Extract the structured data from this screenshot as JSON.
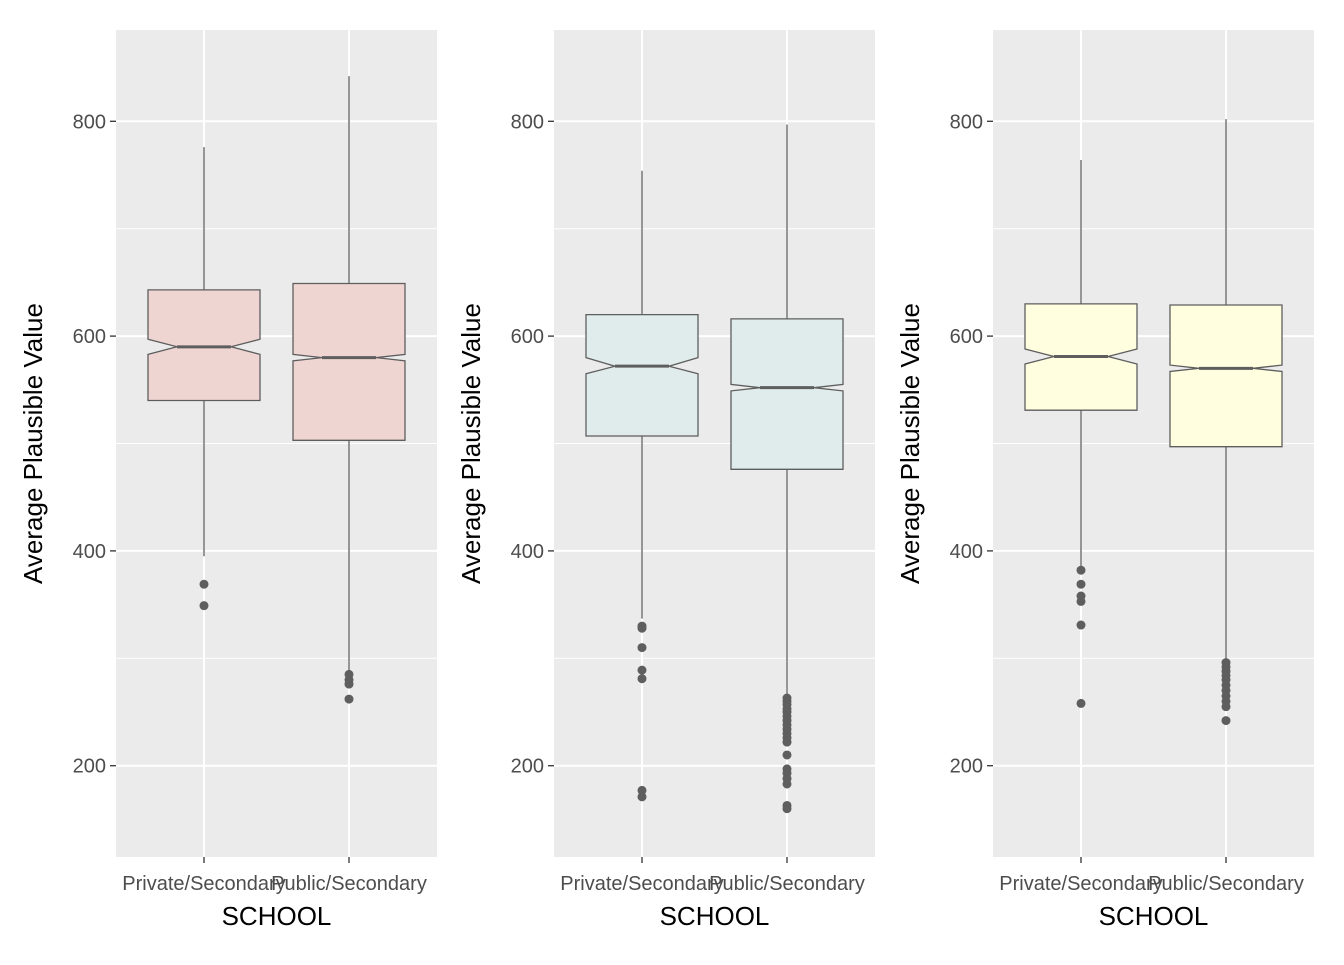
{
  "chart_data": [
    {
      "type": "boxplot",
      "notched": true,
      "fill": "#EFD5D2",
      "xlabel": "SCHOOL",
      "ylabel": "Average Plausible Value",
      "ylim": [
        115,
        885
      ],
      "yticks": [
        200,
        400,
        600,
        800
      ],
      "categories": [
        "Private/Secondary",
        "Public/Secondary"
      ],
      "boxes": [
        {
          "category": "Private/Secondary",
          "whisker_low": 395,
          "q1": 540,
          "median": 590,
          "q3": 643,
          "whisker_high": 776,
          "notch_low": 583,
          "notch_high": 597,
          "outliers": [
            369,
            349
          ]
        },
        {
          "category": "Public/Secondary",
          "whisker_low": 286,
          "q1": 503,
          "median": 580,
          "q3": 649,
          "whisker_high": 842,
          "notch_low": 577,
          "notch_high": 583,
          "outliers": [
            285,
            280,
            276,
            262
          ]
        }
      ]
    },
    {
      "type": "boxplot",
      "notched": true,
      "fill": "#DFECEB",
      "xlabel": "SCHOOL",
      "ylabel": "Average Plausible Value",
      "ylim": [
        115,
        885
      ],
      "yticks": [
        200,
        400,
        600,
        800
      ],
      "categories": [
        "Private/Secondary",
        "Public/Secondary"
      ],
      "boxes": [
        {
          "category": "Private/Secondary",
          "whisker_low": 337,
          "q1": 507,
          "median": 572,
          "q3": 620,
          "whisker_high": 754,
          "notch_low": 565,
          "notch_high": 580,
          "outliers": [
            330,
            328,
            310,
            289,
            281,
            177,
            171
          ]
        },
        {
          "category": "Public/Secondary",
          "whisker_low": 265,
          "q1": 476,
          "median": 552,
          "q3": 616,
          "whisker_high": 797,
          "notch_low": 549,
          "notch_high": 555,
          "outliers": [
            263,
            260,
            257,
            253,
            250,
            246,
            242,
            238,
            234,
            230,
            226,
            222,
            210,
            197,
            193,
            188,
            183,
            163,
            160
          ]
        }
      ]
    },
    {
      "type": "boxplot",
      "notched": true,
      "fill": "#FFFEDF",
      "xlabel": "SCHOOL",
      "ylabel": "Average Plausible Value",
      "ylim": [
        115,
        885
      ],
      "yticks": [
        200,
        400,
        600,
        800
      ],
      "categories": [
        "Private/Secondary",
        "Public/Secondary"
      ],
      "boxes": [
        {
          "category": "Private/Secondary",
          "whisker_low": 384,
          "q1": 531,
          "median": 581,
          "q3": 630,
          "whisker_high": 764,
          "notch_low": 574,
          "notch_high": 588,
          "outliers": [
            382,
            369,
            358,
            353,
            331,
            258
          ]
        },
        {
          "category": "Public/Secondary",
          "whisker_low": 298,
          "q1": 497,
          "median": 570,
          "q3": 629,
          "whisker_high": 802,
          "notch_low": 567,
          "notch_high": 573,
          "outliers": [
            296,
            292,
            288,
            284,
            280,
            275,
            270,
            265,
            260,
            255,
            242
          ]
        }
      ]
    }
  ]
}
